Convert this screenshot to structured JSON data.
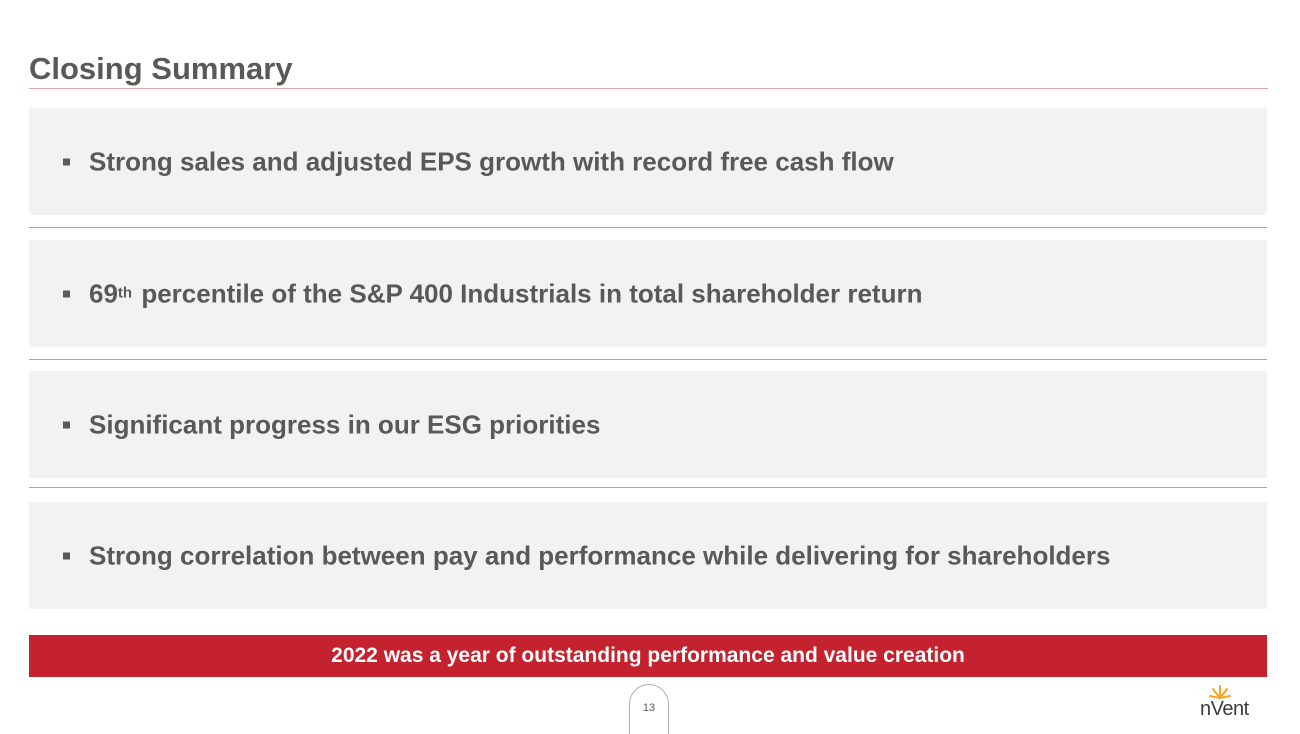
{
  "slide": {
    "title": "Closing Summary",
    "page_number": "13"
  },
  "points": [
    {
      "text": "Strong sales and adjusted EPS growth with record free cash flow"
    },
    {
      "prefix": "69",
      "superscript": "th",
      "text": " percentile of the S&P 400 Industrials in total shareholder return"
    },
    {
      "text": "Significant progress in our ESG priorities"
    },
    {
      "text": "Strong correlation between pay and performance while delivering for shareholders"
    }
  ],
  "banner": {
    "text": "2022 was a year of outstanding performance and value creation"
  },
  "logo": {
    "text": "nVent",
    "icon": "sunburst-icon"
  },
  "colors": {
    "accent": "#c3222e",
    "panel": "#f2f2f2",
    "text": "#595959",
    "logo_rays": "#f5a623"
  }
}
